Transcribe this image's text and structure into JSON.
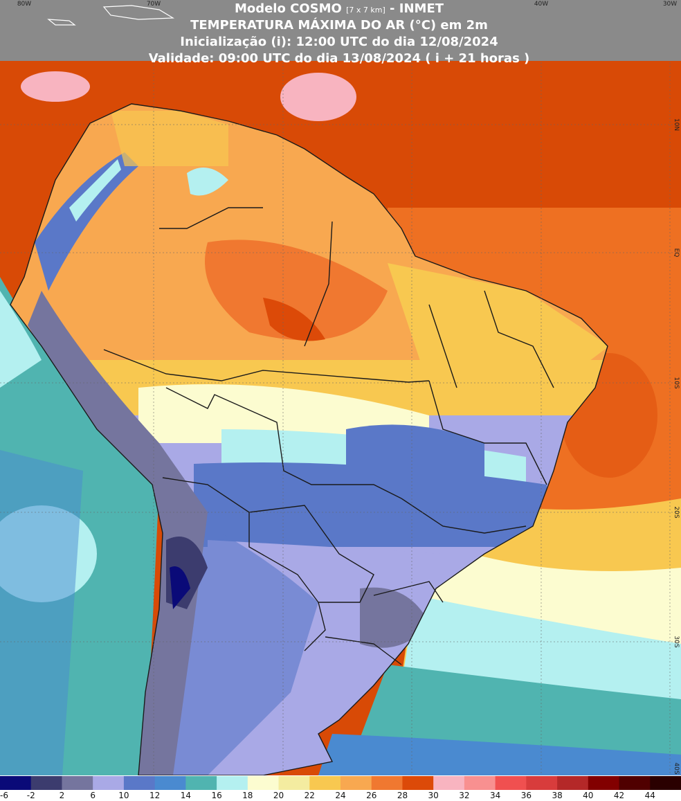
{
  "header": {
    "model": "Modelo COSMO",
    "resolution": "[7 x 7 km]",
    "source": "- INMET",
    "variable": "TEMPERATURA MÁXIMA DO AR (°C) em 2m",
    "init": "Inicialização (i): 12:00 UTC do dia 12/08/2024",
    "valid": "Validade: 09:00 UTC do dia 13/08/2024 ( i + 21 horas )"
  },
  "longitude_labels": [
    "80W",
    "70W",
    "40W",
    "30W"
  ],
  "latitude_labels": [
    "10N",
    "EQ",
    "10S",
    "20S",
    "30S",
    "40S"
  ],
  "colorbar": {
    "ticks": [
      -6,
      -2,
      2,
      6,
      10,
      12,
      14,
      16,
      18,
      20,
      22,
      24,
      26,
      28,
      30,
      32,
      34,
      36,
      38,
      40,
      42,
      44
    ],
    "colors": [
      "#0a0a78",
      "#3c3c6e",
      "#75759e",
      "#a9a9e6",
      "#5a78c8",
      "#4a8ad0",
      "#50b4b0",
      "#b4f0f0",
      "#fcfcd0",
      "#f4eca0",
      "#f8c850",
      "#f8a850",
      "#f07830",
      "#dc4a08",
      "#f8b4c0",
      "#f89090",
      "#f05050",
      "#d83c3c",
      "#b42828",
      "#820000",
      "#500000",
      "#2a0000"
    ]
  }
}
